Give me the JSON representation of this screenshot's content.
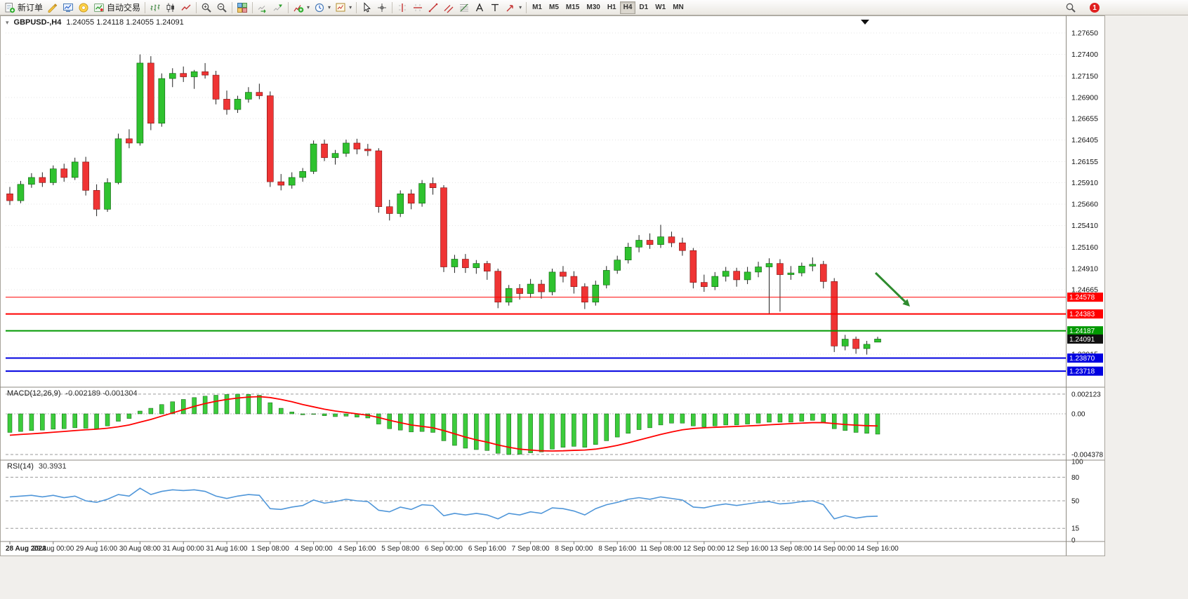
{
  "colors": {
    "bull": "#2fc22f",
    "bear": "#ef3434",
    "wick": "#222222",
    "macd_hist": "#3ccc3c",
    "macd_signal": "#ff0000",
    "rsi_line": "#4f96d9",
    "arrow": "#2e8b2e",
    "badge_black": "#111111"
  },
  "toolbar": {
    "items": [
      {
        "kind": "button",
        "icon": "new-order",
        "label": "新订单",
        "name": "new-order-button"
      },
      {
        "kind": "button",
        "icon": "metaeditor",
        "name": "metaeditor-button"
      },
      {
        "kind": "button",
        "icon": "market-watch",
        "name": "market-watch-button"
      },
      {
        "kind": "button",
        "icon": "community",
        "name": "mql5-community-button"
      },
      {
        "kind": "button",
        "icon": "auto-trading",
        "label": "自动交易",
        "name": "auto-trading-button"
      },
      {
        "kind": "sep"
      },
      {
        "kind": "button",
        "icon": "bar-chart-mode",
        "name": "bar-chart-mode-button"
      },
      {
        "kind": "button",
        "icon": "candlestick-mode",
        "name": "candlestick-mode-button"
      },
      {
        "kind": "button",
        "icon": "line-chart-mode",
        "name": "line-chart-mode-button"
      },
      {
        "kind": "sep"
      },
      {
        "kind": "button",
        "icon": "zoom-in",
        "name": "zoom-in-button"
      },
      {
        "kind": "button",
        "icon": "zoom-out",
        "name": "zoom-out-button"
      },
      {
        "kind": "sep"
      },
      {
        "kind": "button",
        "icon": "tile-windows",
        "name": "tile-windows-button"
      },
      {
        "kind": "sep"
      },
      {
        "kind": "button",
        "icon": "auto-scroll",
        "name": "auto-scroll-button"
      },
      {
        "kind": "button",
        "icon": "chart-shift",
        "name": "chart-shift-button"
      },
      {
        "kind": "sep"
      },
      {
        "kind": "button",
        "icon": "indicators",
        "name": "indicators-button",
        "dd": true
      },
      {
        "kind": "button",
        "icon": "periods",
        "name": "periods-button",
        "dd": true
      },
      {
        "kind": "button",
        "icon": "templates",
        "name": "templates-button",
        "dd": true
      },
      {
        "kind": "sep"
      },
      {
        "kind": "button",
        "icon": "cursor",
        "name": "cursor-button"
      },
      {
        "kind": "button",
        "icon": "crosshair",
        "name": "crosshair-button"
      },
      {
        "kind": "sep"
      },
      {
        "kind": "button",
        "icon": "vertical-line",
        "name": "vertical-line-button"
      },
      {
        "kind": "button",
        "icon": "horizontal-line",
        "name": "horizontal-line-button"
      },
      {
        "kind": "button",
        "icon": "trendline",
        "name": "trendline-button"
      },
      {
        "kind": "button",
        "icon": "equidistant-channel",
        "name": "equidistant-channel-button"
      },
      {
        "kind": "button",
        "icon": "fibonacci",
        "name": "fibonacci-button"
      },
      {
        "kind": "button",
        "icon": "text",
        "name": "text-button"
      },
      {
        "kind": "button",
        "icon": "text-label",
        "name": "text-label-button"
      },
      {
        "kind": "button",
        "icon": "arrow-objects",
        "name": "arrow-objects-button",
        "dd": true
      },
      {
        "kind": "sep"
      }
    ],
    "timeframes": [
      "M1",
      "M5",
      "M15",
      "M30",
      "H1",
      "H4",
      "D1",
      "W1",
      "MN"
    ],
    "active_timeframe": "H4",
    "notification_count": "1"
  },
  "chart": {
    "title": "GBPUSD-,H4",
    "ohlc": "1.24055 1.24118 1.24055 1.24091"
  },
  "chart_data": {
    "type": "candlestick",
    "symbol": "GBPUSD-",
    "timeframe": "H4",
    "price_range_visible": [
      1.2353,
      1.2782
    ],
    "price_axis": [
      "1.27650",
      "1.27400",
      "1.27150",
      "1.26900",
      "1.26655",
      "1.26405",
      "1.26155",
      "1.25910",
      "1.25660",
      "1.25410",
      "1.25160",
      "1.24910",
      "1.24665",
      "1.23915"
    ],
    "candles": [
      [
        1.2578,
        1.2586,
        1.2565,
        1.257
      ],
      [
        1.257,
        1.2593,
        1.2567,
        1.2589
      ],
      [
        1.2589,
        1.2602,
        1.2585,
        1.2597
      ],
      [
        1.2597,
        1.2603,
        1.2586,
        1.2591
      ],
      [
        1.2591,
        1.2611,
        1.2588,
        1.2607
      ],
      [
        1.2607,
        1.2613,
        1.2592,
        1.2597
      ],
      [
        1.2597,
        1.262,
        1.2594,
        1.2615
      ],
      [
        1.2615,
        1.2621,
        1.2576,
        1.2582
      ],
      [
        1.2582,
        1.2589,
        1.2552,
        1.256
      ],
      [
        1.256,
        1.2596,
        1.2557,
        1.2591
      ],
      [
        1.2591,
        1.2648,
        1.2589,
        1.2642
      ],
      [
        1.2642,
        1.2653,
        1.2631,
        1.2637
      ],
      [
        1.2637,
        1.274,
        1.2634,
        1.273
      ],
      [
        1.273,
        1.2738,
        1.2652,
        1.266
      ],
      [
        1.266,
        1.2718,
        1.2656,
        1.2712
      ],
      [
        1.2712,
        1.2724,
        1.2702,
        1.2718
      ],
      [
        1.2718,
        1.2726,
        1.2708,
        1.2714
      ],
      [
        1.2714,
        1.2722,
        1.27,
        1.272
      ],
      [
        1.272,
        1.273,
        1.2712,
        1.2716
      ],
      [
        1.2716,
        1.2721,
        1.2682,
        1.2688
      ],
      [
        1.2688,
        1.2698,
        1.267,
        1.2676
      ],
      [
        1.2676,
        1.2692,
        1.2672,
        1.2688
      ],
      [
        1.2688,
        1.2702,
        1.2684,
        1.2696
      ],
      [
        1.2696,
        1.2706,
        1.2688,
        1.2692
      ],
      [
        1.2692,
        1.2697,
        1.2586,
        1.2592
      ],
      [
        1.2592,
        1.2601,
        1.2582,
        1.2588
      ],
      [
        1.2588,
        1.2603,
        1.2584,
        1.2597
      ],
      [
        1.2597,
        1.2608,
        1.2592,
        1.2604
      ],
      [
        1.2604,
        1.264,
        1.2601,
        1.2636
      ],
      [
        1.2636,
        1.2641,
        1.2616,
        1.262
      ],
      [
        1.262,
        1.2629,
        1.2612,
        1.2625
      ],
      [
        1.2625,
        1.2641,
        1.2621,
        1.2637
      ],
      [
        1.2637,
        1.2642,
        1.2624,
        1.263
      ],
      [
        1.263,
        1.2636,
        1.2622,
        1.2628
      ],
      [
        1.2628,
        1.2631,
        1.2556,
        1.2563
      ],
      [
        1.2563,
        1.2571,
        1.2547,
        1.2555
      ],
      [
        1.2555,
        1.2582,
        1.2551,
        1.2578
      ],
      [
        1.2578,
        1.2583,
        1.256,
        1.2567
      ],
      [
        1.2567,
        1.2594,
        1.2563,
        1.259
      ],
      [
        1.259,
        1.2597,
        1.2577,
        1.2585
      ],
      [
        1.2585,
        1.2588,
        1.2487,
        1.2493
      ],
      [
        1.2493,
        1.2507,
        1.2486,
        1.2502
      ],
      [
        1.2502,
        1.2508,
        1.2486,
        1.2492
      ],
      [
        1.2492,
        1.2501,
        1.2485,
        1.2497
      ],
      [
        1.2497,
        1.25,
        1.2478,
        1.2488
      ],
      [
        1.2488,
        1.2491,
        1.2445,
        1.2452
      ],
      [
        1.2452,
        1.2472,
        1.2448,
        1.2468
      ],
      [
        1.2468,
        1.2473,
        1.2455,
        1.2462
      ],
      [
        1.2462,
        1.2479,
        1.2457,
        1.2473
      ],
      [
        1.2473,
        1.2478,
        1.2456,
        1.2464
      ],
      [
        1.2464,
        1.2491,
        1.246,
        1.2487
      ],
      [
        1.2487,
        1.2494,
        1.2475,
        1.2482
      ],
      [
        1.2482,
        1.2488,
        1.2462,
        1.247
      ],
      [
        1.247,
        1.2474,
        1.2444,
        1.2452
      ],
      [
        1.2452,
        1.2477,
        1.2448,
        1.2472
      ],
      [
        1.2472,
        1.2494,
        1.2468,
        1.2489
      ],
      [
        1.2489,
        1.2506,
        1.2485,
        1.2501
      ],
      [
        1.2501,
        1.2521,
        1.2497,
        1.2516
      ],
      [
        1.2516,
        1.253,
        1.251,
        1.2524
      ],
      [
        1.2524,
        1.2532,
        1.2514,
        1.2519
      ],
      [
        1.2519,
        1.2542,
        1.2515,
        1.2528
      ],
      [
        1.2528,
        1.2534,
        1.2516,
        1.2521
      ],
      [
        1.2521,
        1.2527,
        1.2506,
        1.2512
      ],
      [
        1.2512,
        1.2515,
        1.2468,
        1.2475
      ],
      [
        1.2475,
        1.2484,
        1.2464,
        1.247
      ],
      [
        1.247,
        1.2487,
        1.2466,
        1.2482
      ],
      [
        1.2482,
        1.2493,
        1.2476,
        1.2488
      ],
      [
        1.2488,
        1.2492,
        1.247,
        1.2478
      ],
      [
        1.2478,
        1.2493,
        1.2473,
        1.2487
      ],
      [
        1.2487,
        1.2499,
        1.2481,
        1.2493
      ],
      [
        1.2493,
        1.2503,
        1.2438,
        1.2497
      ],
      [
        1.2497,
        1.2502,
        1.2441,
        1.2484
      ],
      [
        1.2484,
        1.2494,
        1.2478,
        1.2486
      ],
      [
        1.2486,
        1.2498,
        1.2482,
        1.2494
      ],
      [
        1.2494,
        1.2504,
        1.2488,
        1.2496
      ],
      [
        1.2496,
        1.25,
        1.2468,
        1.2476
      ],
      [
        1.2476,
        1.248,
        1.2394,
        1.2401
      ],
      [
        1.2401,
        1.2414,
        1.2396,
        1.2409
      ],
      [
        1.2409,
        1.2412,
        1.2392,
        1.2398
      ],
      [
        1.2398,
        1.2407,
        1.2391,
        1.2403
      ],
      [
        1.24055,
        1.24118,
        1.24055,
        1.24091
      ]
    ],
    "time_labels": [
      {
        "i": 0,
        "text": "28 Aug 2023"
      },
      {
        "i": 4,
        "text": "29 Aug 00:00"
      },
      {
        "i": 8,
        "text": "29 Aug 16:00"
      },
      {
        "i": 12,
        "text": "30 Aug 08:00"
      },
      {
        "i": 16,
        "text": "31 Aug 00:00"
      },
      {
        "i": 20,
        "text": "31 Aug 16:00"
      },
      {
        "i": 24,
        "text": "1 Sep 08:00"
      },
      {
        "i": 28,
        "text": "4 Sep 00:00"
      },
      {
        "i": 32,
        "text": "4 Sep 16:00"
      },
      {
        "i": 36,
        "text": "5 Sep 08:00"
      },
      {
        "i": 40,
        "text": "6 Sep 00:00"
      },
      {
        "i": 44,
        "text": "6 Sep 16:00"
      },
      {
        "i": 48,
        "text": "7 Sep 08:00"
      },
      {
        "i": 52,
        "text": "8 Sep 00:00"
      },
      {
        "i": 56,
        "text": "8 Sep 16:00"
      },
      {
        "i": 60,
        "text": "11 Sep 08:00"
      },
      {
        "i": 64,
        "text": "12 Sep 00:00"
      },
      {
        "i": 68,
        "text": "12 Sep 16:00"
      },
      {
        "i": 72,
        "text": "13 Sep 08:00"
      },
      {
        "i": 76,
        "text": "14 Sep 00:00"
      },
      {
        "i": 80,
        "text": "14 Sep 16:00"
      }
    ],
    "hlines": [
      {
        "price": 1.24578,
        "label": "1.24578",
        "color": "#ff0000",
        "width": 1
      },
      {
        "price": 1.24383,
        "label": "1.24383",
        "color": "#ff0000",
        "width": 2
      },
      {
        "price": 1.24187,
        "label": "1.24187",
        "color": "#009900",
        "width": 2
      },
      {
        "price": 1.2387,
        "label": "1.23870",
        "color": "#0000e0",
        "width": 2
      },
      {
        "price": 1.23718,
        "label": "1.23718",
        "color": "#0000e0",
        "width": 2
      }
    ],
    "current_price": {
      "value": 1.24091,
      "label": "1.24091"
    },
    "macd": {
      "label": "MACD(12,26,9)",
      "value_text": "-0.002189 -0.001304",
      "axis": [
        "0.002123",
        "0.00",
        "-0.004378"
      ],
      "levels": [
        0.002123,
        -0.004378
      ],
      "histogram": [
        -0.002,
        -0.0019,
        -0.0018,
        -0.00175,
        -0.00165,
        -0.0016,
        -0.0015,
        -0.00155,
        -0.0016,
        -0.0013,
        -0.0008,
        -0.0005,
        0.0003,
        0.0006,
        0.001,
        0.0013,
        0.00155,
        0.00175,
        0.0019,
        0.002,
        0.00208,
        0.00212,
        0.0021,
        0.002,
        0.0012,
        0.0006,
        0.0002,
        -0.0001,
        0.0,
        -0.0002,
        -0.0003,
        -0.00025,
        -0.00035,
        -0.00045,
        -0.0011,
        -0.0016,
        -0.00175,
        -0.00195,
        -0.0019,
        -0.002,
        -0.0029,
        -0.0034,
        -0.0037,
        -0.00385,
        -0.00395,
        -0.00425,
        -0.00438,
        -0.00435,
        -0.0042,
        -0.0041,
        -0.0038,
        -0.0036,
        -0.0035,
        -0.0036,
        -0.0033,
        -0.0029,
        -0.0025,
        -0.0021,
        -0.0017,
        -0.0015,
        -0.0012,
        -0.001,
        -0.001,
        -0.0013,
        -0.0014,
        -0.0013,
        -0.0012,
        -0.0012,
        -0.0011,
        -0.001,
        -0.0009,
        -0.0009,
        -0.0009,
        -0.0008,
        -0.0007,
        -0.0009,
        -0.0016,
        -0.0018,
        -0.002,
        -0.0021,
        -0.002189
      ],
      "signal": [
        -0.0023,
        -0.00222,
        -0.00215,
        -0.00207,
        -0.00198,
        -0.0019,
        -0.0018,
        -0.00172,
        -0.00165,
        -0.00155,
        -0.0014,
        -0.0012,
        -0.0009,
        -0.0006,
        -0.00025,
        0.0001,
        0.00045,
        0.0008,
        0.0011,
        0.00135,
        0.00155,
        0.0017,
        0.0018,
        0.00185,
        0.00175,
        0.00155,
        0.0013,
        0.001,
        0.00075,
        0.0005,
        0.0003,
        0.00015,
        0.0,
        -0.00015,
        -0.0004,
        -0.0007,
        -0.00095,
        -0.0012,
        -0.00135,
        -0.0015,
        -0.0018,
        -0.00215,
        -0.0025,
        -0.0028,
        -0.00305,
        -0.00335,
        -0.0036,
        -0.0038,
        -0.0039,
        -0.00398,
        -0.004,
        -0.00398,
        -0.00393,
        -0.0039,
        -0.0038,
        -0.00362,
        -0.0034,
        -0.00312,
        -0.00282,
        -0.00252,
        -0.00222,
        -0.00195,
        -0.00172,
        -0.00158,
        -0.0015,
        -0.00145,
        -0.0014,
        -0.00136,
        -0.0013,
        -0.00125,
        -0.00118,
        -0.00112,
        -0.00106,
        -0.001,
        -0.00095,
        -0.00095,
        -0.00105,
        -0.00115,
        -0.00122,
        -0.00128,
        -0.001304
      ]
    },
    "rsi": {
      "label": "RSI(14)",
      "value_text": "30.3931",
      "axis": [
        "100",
        "80",
        "50",
        "15",
        "0"
      ],
      "levels": [
        80,
        50,
        15
      ],
      "values": [
        55,
        56,
        57,
        55,
        57,
        54,
        56,
        50,
        48,
        52,
        58,
        56,
        66,
        58,
        62,
        64,
        63,
        64,
        62,
        56,
        53,
        56,
        58,
        57,
        40,
        39,
        42,
        44,
        51,
        47,
        49,
        52,
        50,
        49,
        38,
        36,
        42,
        39,
        45,
        44,
        31,
        34,
        32,
        34,
        32,
        27,
        34,
        32,
        36,
        34,
        41,
        40,
        37,
        32,
        40,
        45,
        48,
        52,
        54,
        52,
        55,
        53,
        51,
        42,
        41,
        44,
        46,
        44,
        46,
        48,
        49,
        46,
        47,
        49,
        50,
        45,
        27,
        31,
        28,
        30,
        30.3931
      ]
    },
    "annotation_arrow": {
      "from": [
        1247,
        367
      ],
      "to": [
        1296,
        415
      ],
      "color": "#2e8b2e"
    }
  }
}
